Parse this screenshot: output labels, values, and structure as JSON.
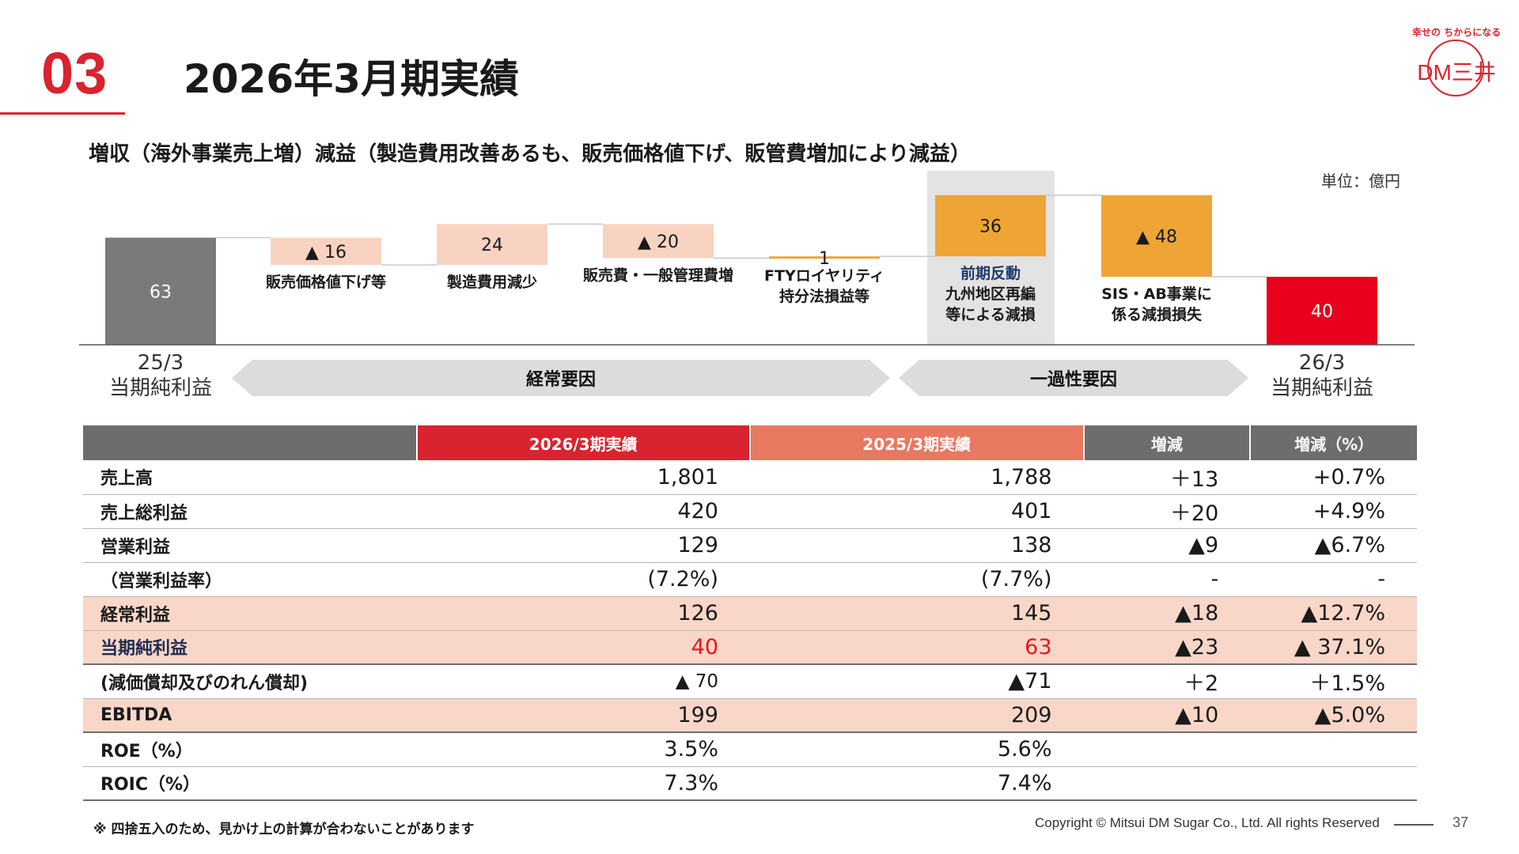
{
  "header": {
    "section_number": "03",
    "title": "2026年3月期実績"
  },
  "logo": {
    "tagline": "幸せの ちからになる",
    "brand": "DM三井"
  },
  "subtitle": "増収（海外事業売上増）減益（製造費用改善あるも、販売価格値下げ、販管費増加により減益）",
  "unit": "単位：億円",
  "chart_data": {
    "type": "bar",
    "subtype": "waterfall",
    "title": "",
    "unit": "単位：億円",
    "steps": [
      {
        "label_lines": [
          "25/3",
          "当期純利益"
        ],
        "value": 63,
        "display": "63",
        "kind": "total",
        "color": "#7a7a7a"
      },
      {
        "label_lines": [
          "販売価格値下げ等"
        ],
        "value": -16,
        "display": "▲ 16",
        "kind": "delta",
        "color": "#f8d3c1"
      },
      {
        "label_lines": [
          "製造費用減少"
        ],
        "value": 24,
        "display": "24",
        "kind": "delta",
        "color": "#f8d3c1"
      },
      {
        "label_lines": [
          "販売費・一般管理費増"
        ],
        "value": -20,
        "display": "▲ 20",
        "kind": "delta",
        "color": "#f8d3c1"
      },
      {
        "label_lines": [
          "FTYロイヤリティ",
          "持分法損益等"
        ],
        "value": 1,
        "display": "1",
        "kind": "delta",
        "color": "#eea535"
      },
      {
        "label_lines": [
          "前期反動",
          "九州地区再編",
          "等による減損"
        ],
        "value": 36,
        "display": "36",
        "kind": "delta",
        "color": "#eea535",
        "highlight": true
      },
      {
        "label_lines": [
          "SIS・AB事業に",
          "係る減損損失"
        ],
        "value": -48,
        "display": "▲ 48",
        "kind": "delta",
        "color": "#eea535"
      },
      {
        "label_lines": [
          "26/3",
          "当期純利益"
        ],
        "value": 40,
        "display": "40",
        "kind": "total",
        "color": "#e8001c"
      }
    ],
    "groups": [
      {
        "label": "経常要因"
      },
      {
        "label": "一過性要因"
      }
    ]
  },
  "table": {
    "headers": [
      "",
      "2026/3期実績",
      "2025/3期実績",
      "増減",
      "増減（%）"
    ],
    "rows": [
      {
        "label": "売上高",
        "cur": "1,801",
        "prev": "1,788",
        "diff": "＋13",
        "pct": "+0.7%"
      },
      {
        "label": "売上総利益",
        "cur": "420",
        "prev": "401",
        "diff": "＋20",
        "pct": "+4.9%"
      },
      {
        "label": "営業利益",
        "cur": "129",
        "prev": "138",
        "diff": "▲9",
        "pct": "▲6.7%"
      },
      {
        "label": "（営業利益率）",
        "cur": "(7.2%)",
        "prev": "(7.7%)",
        "diff": "-",
        "pct": "-"
      },
      {
        "label": "経常利益",
        "cur": "126",
        "prev": "145",
        "diff": "▲18",
        "pct": "▲12.7%"
      },
      {
        "label": "当期純利益",
        "cur": "40",
        "prev": "63",
        "diff": "▲23",
        "pct": "▲ 37.1%"
      },
      {
        "label": "(減価償却及びのれん償却)",
        "cur": "▲ 70",
        "prev": "▲71",
        "diff": "＋2",
        "pct": "＋1.5%"
      },
      {
        "label": "EBITDA",
        "cur": "199",
        "prev": "209",
        "diff": "▲10",
        "pct": "▲5.0%"
      },
      {
        "label": "ROE（%）",
        "cur": "3.5%",
        "prev": "5.6%",
        "diff": "",
        "pct": ""
      },
      {
        "label": "ROIC（%）",
        "cur": "7.3%",
        "prev": "7.4%",
        "diff": "",
        "pct": ""
      }
    ]
  },
  "footer": {
    "note": "※ 四捨五入のため、見かけ上の計算が合わないことがあります",
    "copyright": "Copyright © Mitsui DM Sugar Co., Ltd. All rights Reserved",
    "page": "37"
  }
}
